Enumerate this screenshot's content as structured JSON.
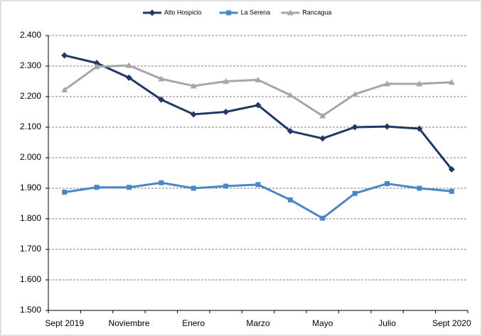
{
  "chart_data": {
    "type": "line",
    "categories": [
      "Sept 2019",
      null,
      "Noviembre",
      null,
      "Enero",
      null,
      "Marzo",
      null,
      "Mayo",
      null,
      "Julio",
      null,
      "Sept 2020"
    ],
    "series": [
      {
        "name": "Alto Hospicio",
        "color": "#1f3864",
        "marker": "diamond",
        "values": [
          2335,
          2310,
          2262,
          2190,
          2142,
          2150,
          2172,
          2087,
          2063,
          2100,
          2102,
          2095,
          1962
        ]
      },
      {
        "name": "La Serena",
        "color": "#4a86c8",
        "marker": "square",
        "values": [
          1887,
          1903,
          1903,
          1918,
          1900,
          1907,
          1912,
          1862,
          1802,
          1883,
          1915,
          1900,
          1890
        ]
      },
      {
        "name": "Rancagua",
        "color": "#a6a6a6",
        "marker": "triangle",
        "values": [
          2222,
          2298,
          2302,
          2258,
          2235,
          2250,
          2255,
          2205,
          2137,
          2208,
          2242,
          2242,
          2247
        ]
      }
    ],
    "ylim": [
      1500,
      2400
    ],
    "yticks": [
      {
        "value": 1500,
        "label": "1.500"
      },
      {
        "value": 1600,
        "label": "1.600"
      },
      {
        "value": 1700,
        "label": "1.700"
      },
      {
        "value": 1800,
        "label": "1.800"
      },
      {
        "value": 1900,
        "label": "1.900"
      },
      {
        "value": 2000,
        "label": "2.000"
      },
      {
        "value": 2100,
        "label": "2.100"
      },
      {
        "value": 2200,
        "label": "2.200"
      },
      {
        "value": 2300,
        "label": "2.300"
      },
      {
        "value": 2400,
        "label": "2.400"
      }
    ],
    "grid": true,
    "legend": "top"
  }
}
